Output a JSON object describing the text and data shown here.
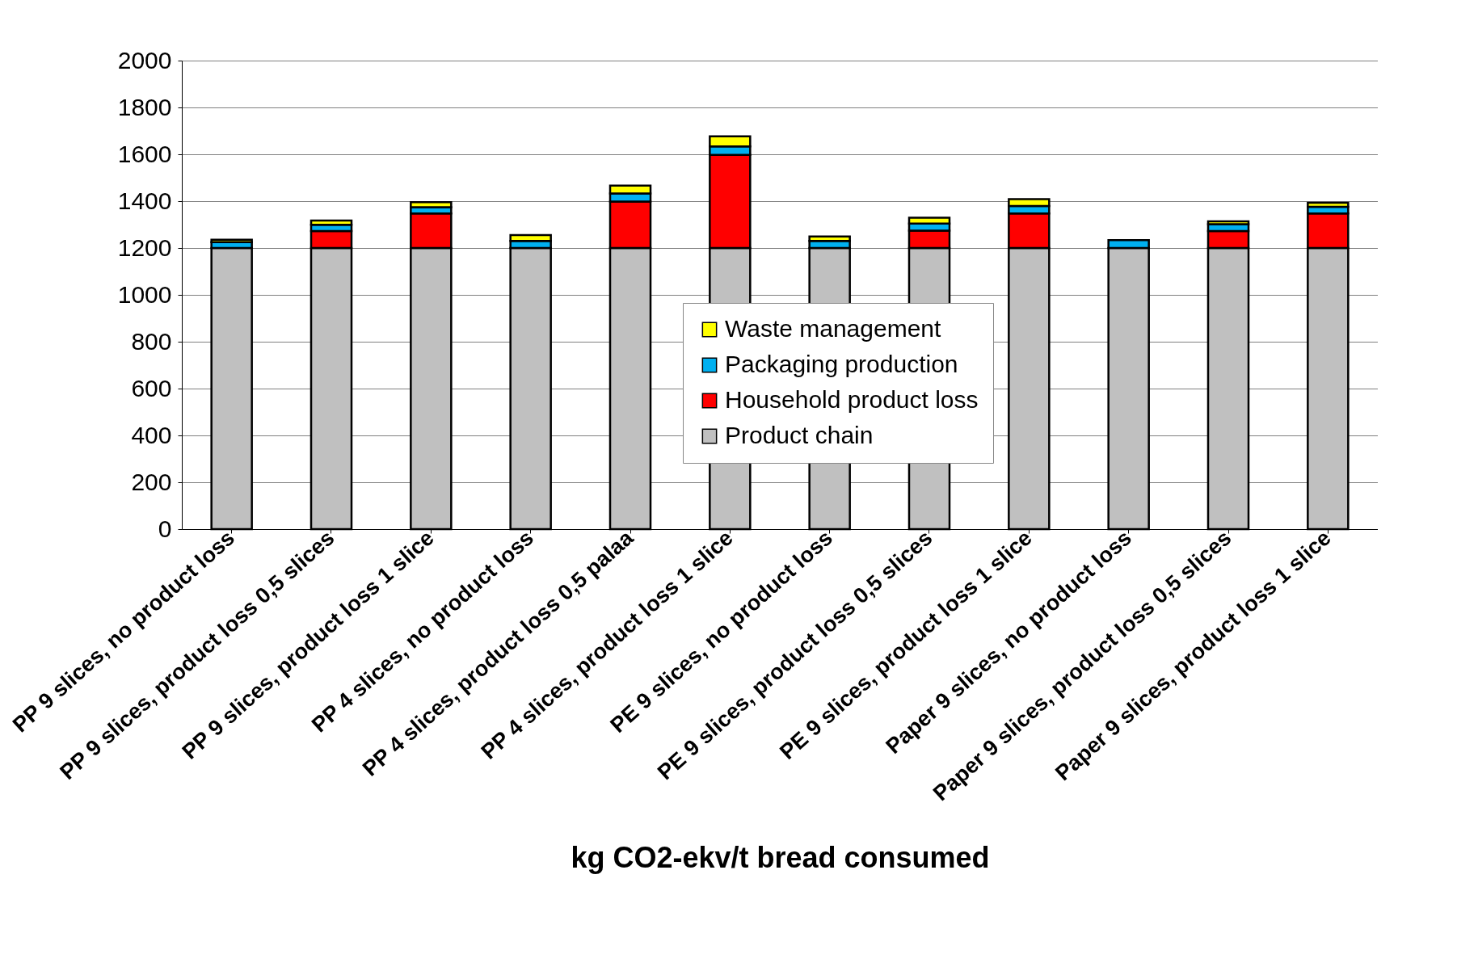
{
  "chart_data": {
    "type": "bar",
    "stacked": true,
    "xlabel": "kg CO2-ekv/t bread consumed",
    "categories": [
      "PP 9 slices, no product loss",
      "PP 9 slices, product loss 0,5 slices",
      "PP 9 slices, product loss 1 slice",
      "PP 4 slices, no product loss",
      "PP 4 slices, product loss 0,5 palaa",
      "PP 4 slices, product loss 1 slice",
      "PE 9 slices, no product loss",
      "PE 9 slices, product loss 0,5 slices",
      "PE 9 slices, product loss 1  slice",
      "Paper 9 slices, no product loss",
      "Paper 9 slices, product loss 0,5 slices",
      "Paper 9 slices, product loss 1 slice"
    ],
    "series": [
      {
        "name": "Product chain",
        "color": "#c0c0c0",
        "values": [
          1200,
          1200,
          1200,
          1200,
          1200,
          1200,
          1200,
          1200,
          1200,
          1200,
          1200,
          1200
        ]
      },
      {
        "name": "Household product loss",
        "color": "#ff0000",
        "values": [
          0,
          72,
          147,
          0,
          198,
          397,
          0,
          74,
          147,
          0,
          72,
          147
        ]
      },
      {
        "name": "Packaging production",
        "color": "#00b0f0",
        "values": [
          25,
          27,
          27,
          30,
          35,
          37,
          30,
          30,
          32,
          34,
          30,
          29
        ]
      },
      {
        "name": "Waste management",
        "color": "#ffff00",
        "values": [
          10,
          18,
          22,
          25,
          33,
          43,
          19,
          25,
          30,
          0,
          12,
          17
        ]
      }
    ],
    "ylim": [
      0,
      2000
    ],
    "yticks": [
      0,
      200,
      400,
      600,
      800,
      1000,
      1200,
      1400,
      1600,
      1800,
      2000
    ],
    "grid": "y",
    "legend": "bottom"
  }
}
